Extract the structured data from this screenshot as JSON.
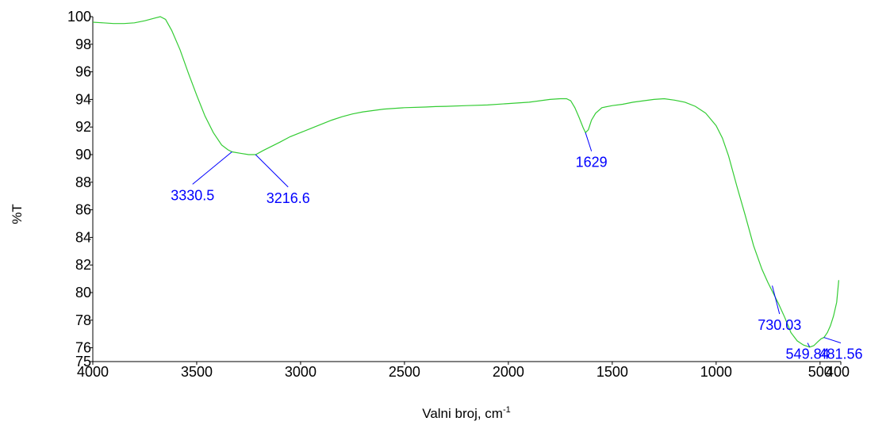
{
  "chart_data": {
    "type": "line",
    "title": "",
    "xlabel": "Valni broj, cm",
    "xlabel_superscript": "-1",
    "ylabel": "%T",
    "xlim": [
      4000,
      400
    ],
    "ylim": [
      75,
      100
    ],
    "x_reversed": true,
    "grid": false,
    "x_ticks": [
      4000,
      3500,
      3000,
      2500,
      2000,
      1500,
      1000,
      500,
      400
    ],
    "x_tick_labels": [
      "4000",
      "3500",
      "3000",
      "2500",
      "2000",
      "1500",
      "1000",
      "500",
      "400"
    ],
    "y_ticks": [
      75,
      76,
      78,
      80,
      82,
      84,
      86,
      88,
      90,
      92,
      94,
      96,
      98,
      100
    ],
    "y_tick_labels": [
      "75",
      "76",
      "78",
      "80",
      "82",
      "84",
      "86",
      "88",
      "90",
      "92",
      "94",
      "96",
      "98",
      "100"
    ],
    "line_color": "#33cc33",
    "annotation_color": "#0000ff",
    "series": [
      {
        "x": [
          4000,
          3950,
          3900,
          3850,
          3800,
          3750,
          3700,
          3675,
          3650,
          3620,
          3580,
          3540,
          3500,
          3460,
          3420,
          3380,
          3350,
          3330,
          3290,
          3250,
          3216,
          3180,
          3140,
          3100,
          3050,
          3000,
          2950,
          2900,
          2850,
          2800,
          2750,
          2700,
          2600,
          2500,
          2400,
          2350,
          2300,
          2200,
          2100,
          2000,
          1900,
          1800,
          1750,
          1720,
          1700,
          1680,
          1660,
          1640,
          1629,
          1615,
          1600,
          1580,
          1550,
          1500,
          1450,
          1400,
          1350,
          1300,
          1250,
          1200,
          1150,
          1100,
          1050,
          1000,
          970,
          940,
          900,
          860,
          820,
          780,
          750,
          730,
          700,
          670,
          640,
          610,
          580,
          550,
          530,
          510,
          495,
          481,
          465,
          450,
          435,
          420,
          410
        ],
        "y": [
          99.6,
          99.55,
          99.5,
          99.5,
          99.55,
          99.7,
          99.9,
          100.0,
          99.8,
          99.0,
          97.6,
          95.9,
          94.3,
          92.8,
          91.6,
          90.7,
          90.35,
          90.2,
          90.1,
          90.0,
          90.0,
          90.3,
          90.6,
          90.9,
          91.3,
          91.6,
          91.9,
          92.2,
          92.5,
          92.75,
          92.95,
          93.1,
          93.3,
          93.4,
          93.45,
          93.48,
          93.5,
          93.55,
          93.6,
          93.7,
          93.8,
          94.0,
          94.05,
          94.05,
          93.9,
          93.4,
          92.7,
          91.95,
          91.6,
          91.8,
          92.5,
          93.0,
          93.4,
          93.55,
          93.65,
          93.8,
          93.9,
          94.0,
          94.05,
          93.95,
          93.8,
          93.5,
          93.0,
          92.1,
          91.2,
          89.9,
          87.7,
          85.6,
          83.4,
          81.7,
          80.7,
          80.1,
          79.2,
          78.2,
          77.1,
          76.5,
          76.2,
          76.05,
          76.15,
          76.45,
          76.65,
          76.75,
          77.1,
          77.6,
          78.3,
          79.3,
          80.9
        ]
      }
    ],
    "annotations": [
      {
        "text": "3330.5",
        "x": 3330.5,
        "y": 90.2,
        "label_x": 3520,
        "label_y": 86.7
      },
      {
        "text": "3216.6",
        "x": 3216.6,
        "y": 90.0,
        "label_x": 3060,
        "label_y": 86.5
      },
      {
        "text": "1629",
        "x": 1629,
        "y": 91.6,
        "label_x": 1600,
        "label_y": 89.1
      },
      {
        "text": "730.03",
        "x": 730.03,
        "y": 80.5,
        "label_x": 695,
        "label_y": 77.3
      },
      {
        "text": "549.84",
        "x": 549.84,
        "y": 76.05,
        "label_x": 560,
        "label_y": 75.2
      },
      {
        "text": "481.56",
        "x": 481.56,
        "y": 76.75,
        "label_x": 400,
        "label_y": 75.2
      }
    ]
  }
}
